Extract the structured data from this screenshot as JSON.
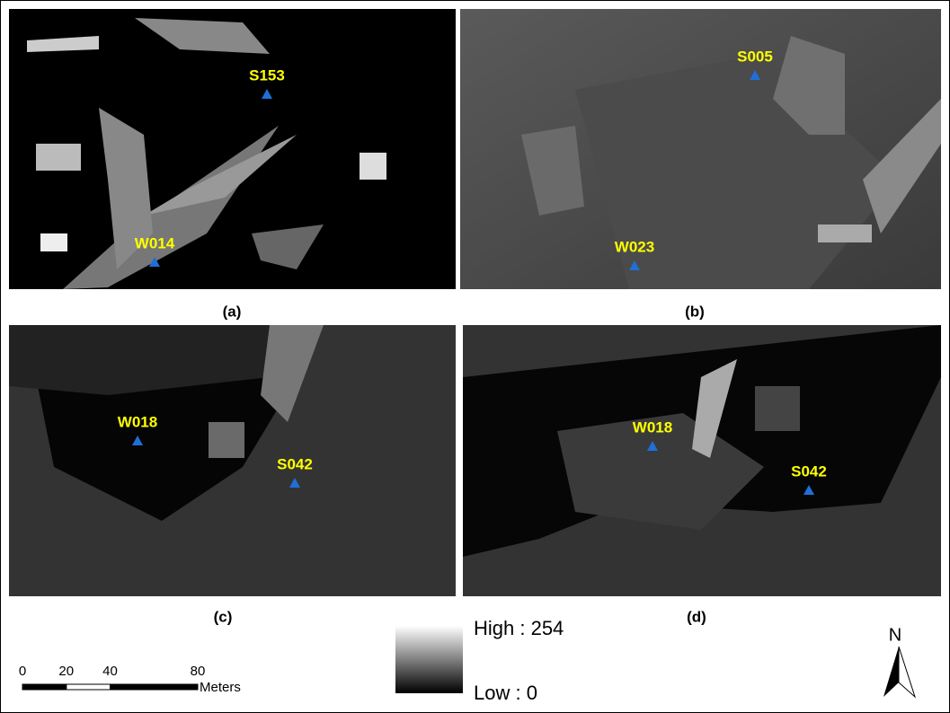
{
  "panels": [
    {
      "label": "(a)",
      "sites": [
        "S153",
        "W014"
      ]
    },
    {
      "label": "(b)",
      "sites": [
        "S005",
        "W023"
      ]
    },
    {
      "label": "(c)",
      "sites": [
        "W018",
        "S042"
      ]
    },
    {
      "label": "(d)",
      "sites": [
        "W018",
        "S042"
      ]
    }
  ],
  "legend": {
    "high": "High : 254",
    "low": "Low : 0"
  },
  "scale_bar": {
    "ticks": [
      0,
      20,
      40,
      80
    ],
    "unit": "Meters"
  },
  "north_arrow": "N"
}
